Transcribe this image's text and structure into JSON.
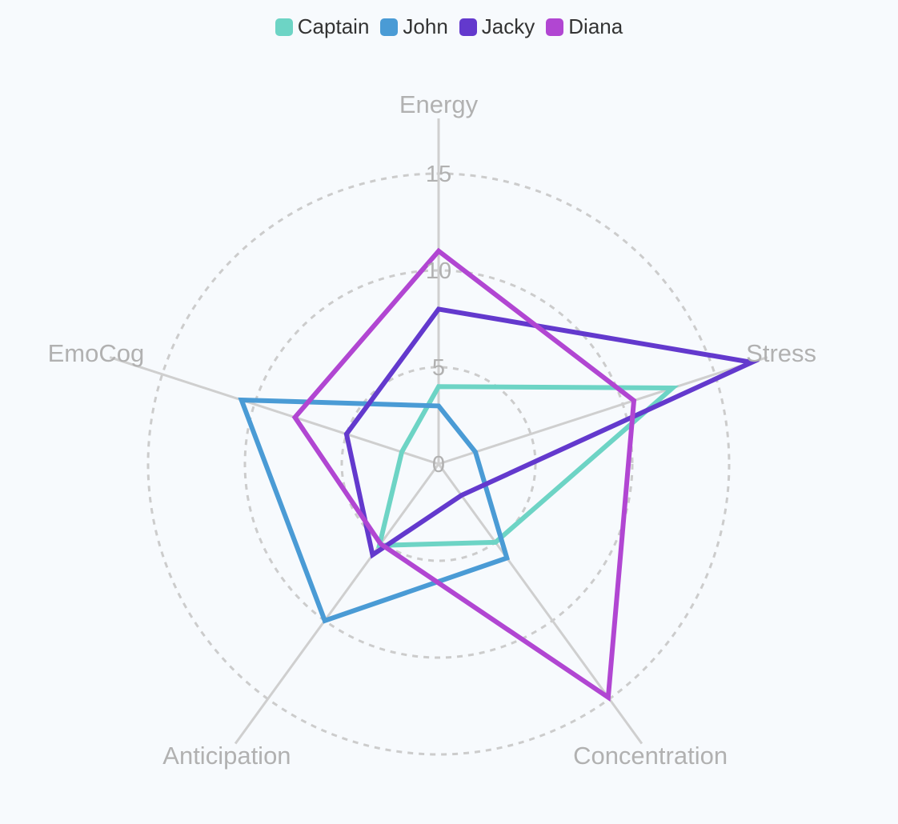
{
  "chart_data": {
    "type": "radar",
    "axes": [
      "Energy",
      "Stress",
      "Concentration",
      "Anticipation",
      "EmoCog"
    ],
    "ticks": [
      0,
      5,
      10,
      15
    ],
    "rlim": [
      0,
      15
    ],
    "grid": true,
    "legend_position": "top-center",
    "series": [
      {
        "name": "Captain",
        "color": "#6dd4c5",
        "values": [
          4,
          12.7,
          5,
          5.2,
          2
        ]
      },
      {
        "name": "John",
        "color": "#4a9bd5",
        "values": [
          3,
          2,
          6,
          10,
          10.7
        ]
      },
      {
        "name": "Jacky",
        "color": "#6339cd",
        "values": [
          8,
          17,
          2,
          5.8,
          5
        ]
      },
      {
        "name": "Diana",
        "color": "#b146d2",
        "values": [
          11,
          10.6,
          14.9,
          5.1,
          7.8
        ]
      }
    ]
  }
}
